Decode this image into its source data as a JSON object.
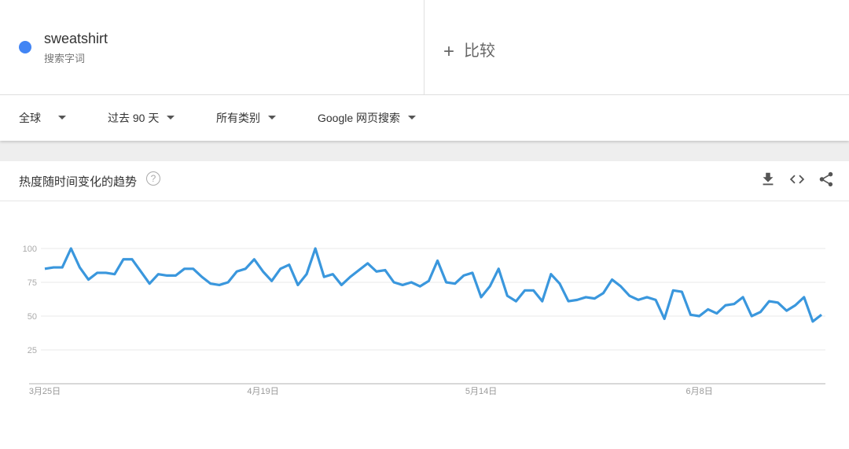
{
  "term": {
    "name": "sweatshirt",
    "subtitle": "搜索字词",
    "color": "#4285f4"
  },
  "compare": {
    "icon": "plus-icon",
    "label": "比较"
  },
  "filters": [
    {
      "label": "全球"
    },
    {
      "label": "过去 90 天"
    },
    {
      "label": "所有类别"
    },
    {
      "label": "Google 网页搜索"
    }
  ],
  "card": {
    "title": "热度随时间变化的趋势",
    "help_icon": "question-icon",
    "help_text": "?",
    "actions": [
      "download-icon",
      "embed-icon",
      "share-icon"
    ]
  },
  "chart_data": {
    "type": "line",
    "line_color": "#3a97dd",
    "ylim": [
      0,
      100
    ],
    "yticks": [
      25,
      50,
      75,
      100
    ],
    "grid": true,
    "xtick_labels": [
      {
        "index": 0,
        "label": "3月25日"
      },
      {
        "index": 25,
        "label": "4月19日"
      },
      {
        "index": 50,
        "label": "5月14日"
      },
      {
        "index": 75,
        "label": "6月8日"
      }
    ],
    "x": [
      "3-25",
      "3-26",
      "3-27",
      "3-28",
      "3-29",
      "3-30",
      "3-31",
      "4-01",
      "4-02",
      "4-03",
      "4-04",
      "4-05",
      "4-06",
      "4-07",
      "4-08",
      "4-09",
      "4-10",
      "4-11",
      "4-12",
      "4-13",
      "4-14",
      "4-15",
      "4-16",
      "4-17",
      "4-18",
      "4-19",
      "4-20",
      "4-21",
      "4-22",
      "4-23",
      "4-24",
      "4-25",
      "4-26",
      "4-27",
      "4-28",
      "4-29",
      "4-30",
      "5-01",
      "5-02",
      "5-03",
      "5-04",
      "5-05",
      "5-06",
      "5-07",
      "5-08",
      "5-09",
      "5-10",
      "5-11",
      "5-12",
      "5-13",
      "5-14",
      "5-15",
      "5-16",
      "5-17",
      "5-18",
      "5-19",
      "5-20",
      "5-21",
      "5-22",
      "5-23",
      "5-24",
      "5-25",
      "5-26",
      "5-27",
      "5-28",
      "5-29",
      "5-30",
      "5-31",
      "6-01",
      "6-02",
      "6-03",
      "6-04",
      "6-05",
      "6-06",
      "6-07",
      "6-08",
      "6-09",
      "6-10",
      "6-11",
      "6-12",
      "6-13",
      "6-14",
      "6-15",
      "6-16",
      "6-17",
      "6-18",
      "6-19",
      "6-20",
      "6-21",
      "6-22"
    ],
    "series": [
      {
        "values": [
          85,
          86,
          86,
          100,
          86,
          77,
          82,
          82,
          81,
          92,
          92,
          83,
          74,
          81,
          80,
          80,
          85,
          85,
          79,
          74,
          73,
          75,
          83,
          85,
          92,
          83,
          76,
          85,
          88,
          73,
          81,
          100,
          79,
          81,
          73,
          79,
          84,
          89,
          83,
          84,
          75,
          73,
          75,
          72,
          76,
          91,
          75,
          74,
          80,
          82,
          64,
          72,
          85,
          65,
          61,
          69,
          69,
          61,
          81,
          74,
          61,
          62,
          64,
          63,
          67,
          77,
          72,
          65,
          62,
          64,
          62,
          48,
          69,
          68,
          51,
          50,
          55,
          52,
          58,
          59,
          64,
          50,
          53,
          61,
          60,
          54,
          58,
          64,
          46,
          51
        ]
      }
    ]
  }
}
